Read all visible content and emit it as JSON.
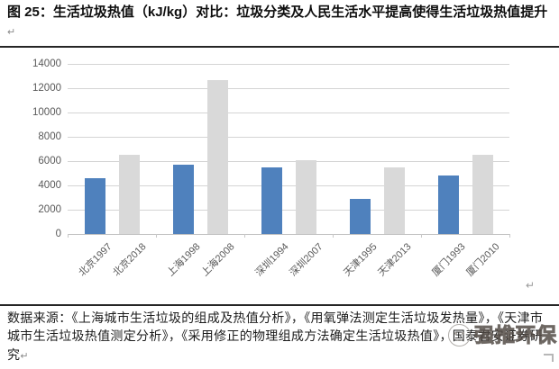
{
  "title": {
    "text": "图 25：生活垃圾热值（kJ/kg）对比：垃圾分类及人民生活水平提高使得生活垃圾热值提升"
  },
  "return_mark": "↵",
  "chart_data": {
    "type": "bar",
    "title": "生活垃圾热值（kJ/kg）对比",
    "categories": [
      "北京1997",
      "北京2018",
      "上海1998",
      "上海2008",
      "深圳1994",
      "深圳2007",
      "天津1995",
      "天津2013",
      "厦门1993",
      "厦门2010"
    ],
    "values": [
      4600,
      6500,
      5700,
      12700,
      5500,
      6100,
      2900,
      5500,
      4800,
      6500
    ],
    "bar_color_pattern": [
      "#4f81bd",
      "#d9d9d9"
    ],
    "pair_grouping": 2,
    "ylim": [
      0,
      14000
    ],
    "yticks": [
      0,
      2000,
      4000,
      6000,
      8000,
      10000,
      12000,
      14000
    ],
    "xlabel": "",
    "ylabel": "",
    "grid": true,
    "legend": "none"
  },
  "source_note": {
    "text": "数据来源：《上海城市生活垃圾的组成及热值分析》，《用氧弹法测定生活垃圾发热量》，《天津市城市生活垃圾热值测定分析》，《采用修正的物理组成方法确定生活垃圾热值》，国泰君安证券研究"
  },
  "watermark": {
    "text": "强推环保",
    "icon": "smiley-stamp-icon"
  }
}
